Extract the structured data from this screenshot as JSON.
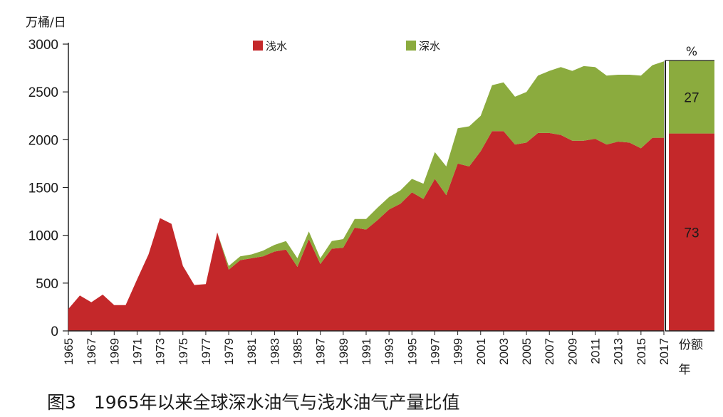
{
  "caption": "图3　1965年以来全球深水油气与浅水油气产量比值",
  "chart_data": {
    "type": "area",
    "stacked": true,
    "ylabel": "万桶/日",
    "ylim": [
      0,
      3000
    ],
    "yticks": [
      0,
      500,
      1000,
      1500,
      2000,
      2500,
      3000
    ],
    "x_tick_labels": [
      "1965",
      "1967",
      "1969",
      "1971",
      "1973",
      "1975",
      "1977",
      "1979",
      "1981",
      "1983",
      "1985",
      "1987",
      "1989",
      "1991",
      "1993",
      "1995",
      "1997",
      "1999",
      "2001",
      "2003",
      "2005",
      "2007",
      "2009",
      "2011",
      "2013",
      "2015",
      "2017"
    ],
    "x": [
      1965,
      1966,
      1967,
      1968,
      1969,
      1970,
      1971,
      1972,
      1973,
      1974,
      1975,
      1976,
      1977,
      1978,
      1979,
      1980,
      1981,
      1982,
      1983,
      1984,
      1985,
      1986,
      1987,
      1988,
      1989,
      1990,
      1991,
      1992,
      1993,
      1994,
      1995,
      1996,
      1997,
      1998,
      1999,
      2000,
      2001,
      2002,
      2003,
      2004,
      2005,
      2006,
      2007,
      2008,
      2009,
      2010,
      2011,
      2012,
      2013,
      2014,
      2015,
      2016,
      2017
    ],
    "legend_position": "top",
    "series": [
      {
        "name": "浅水",
        "color": "#c4282a",
        "values": [
          230,
          370,
          300,
          380,
          270,
          270,
          540,
          800,
          1180,
          1120,
          680,
          480,
          490,
          1030,
          640,
          740,
          760,
          780,
          830,
          850,
          670,
          960,
          700,
          860,
          870,
          1080,
          1060,
          1160,
          1270,
          1330,
          1450,
          1380,
          1590,
          1420,
          1750,
          1720,
          1880,
          2090,
          2090,
          1950,
          1970,
          2070,
          2070,
          2050,
          1990,
          1990,
          2010,
          1950,
          1980,
          1970,
          1910,
          2020,
          2020
        ]
      },
      {
        "name": "深水",
        "color": "#8bab3e",
        "values": [
          0,
          0,
          0,
          0,
          0,
          0,
          0,
          0,
          0,
          0,
          0,
          0,
          0,
          0,
          40,
          40,
          40,
          60,
          70,
          90,
          90,
          80,
          60,
          80,
          90,
          90,
          110,
          130,
          130,
          140,
          140,
          160,
          280,
          300,
          370,
          420,
          370,
          480,
          510,
          500,
          530,
          600,
          650,
          710,
          730,
          780,
          750,
          720,
          700,
          710,
          760,
          760,
          800
        ]
      }
    ],
    "share_panel": {
      "unit": "%",
      "xlabel": "份额",
      "xlabel2": "年",
      "segments": [
        {
          "name": "浅水",
          "value": 73,
          "label": "73",
          "color": "#c4282a"
        },
        {
          "name": "深水",
          "value": 27,
          "label": "27",
          "color": "#8bab3e"
        }
      ]
    }
  }
}
